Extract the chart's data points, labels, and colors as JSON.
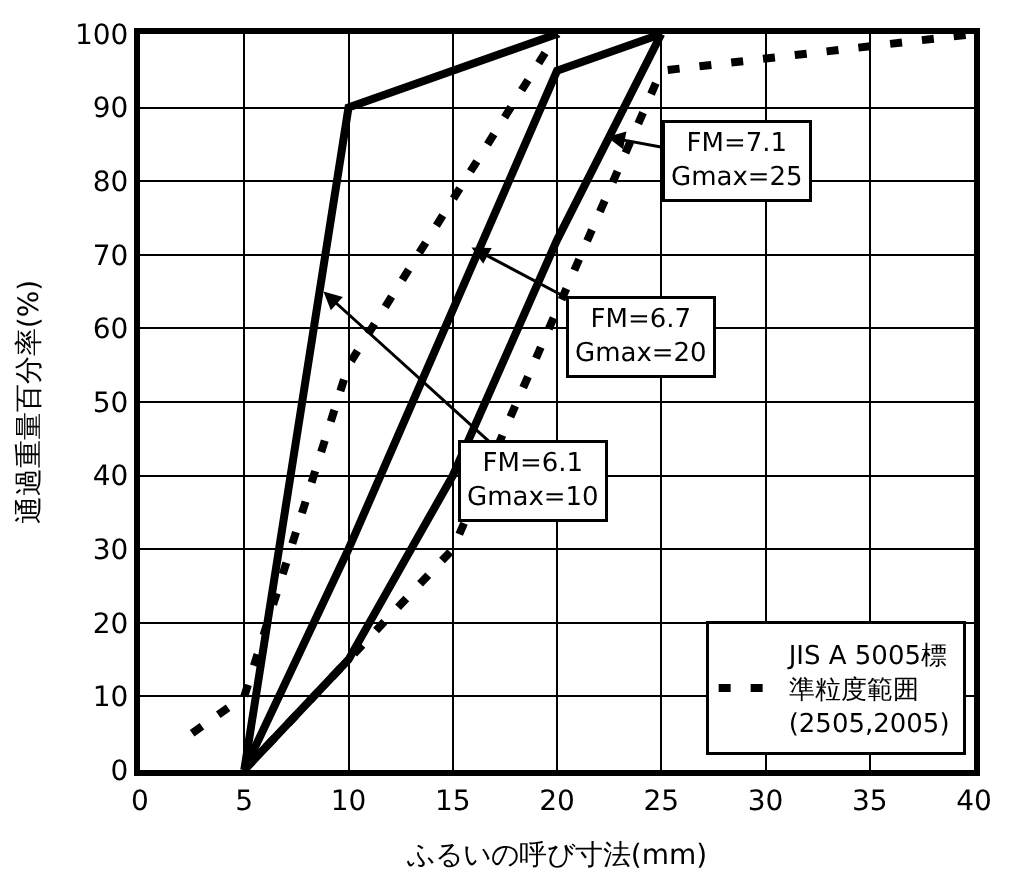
{
  "chart_data": {
    "type": "line",
    "xlabel": "ふるいの呼び寸法(mm)",
    "ylabel": "通過重量百分率(%)",
    "xlim": [
      0,
      40
    ],
    "xticks": [
      0,
      5,
      10,
      15,
      20,
      25,
      30,
      35,
      40
    ],
    "ylim": [
      0,
      100
    ],
    "yticks": [
      0,
      10,
      20,
      30,
      40,
      50,
      60,
      70,
      80,
      90,
      100
    ],
    "grid": true,
    "legend": "bottom right",
    "marker": "none",
    "series": [
      {
        "color": "#000000",
        "line_style": "solid",
        "x": [
          5,
          10,
          20
        ],
        "values": [
          0,
          90,
          100
        ]
      },
      {
        "color": "#000000",
        "line_style": "solid",
        "x": [
          5,
          10,
          20,
          25
        ],
        "values": [
          0,
          30,
          95,
          100
        ]
      },
      {
        "color": "#000000",
        "line_style": "solid",
        "x": [
          5,
          10,
          15,
          20,
          25
        ],
        "values": [
          0,
          15,
          40,
          72,
          100
        ]
      },
      {
        "name": "JIS A 5005標準粒度範囲\n(2505,2005)",
        "color": "#000000",
        "line_style": "dashed",
        "x": [
          2.5,
          5,
          10,
          20
        ],
        "values": [
          5,
          10,
          55,
          100
        ]
      },
      {
        "color": "#000000",
        "line_style": "dashed",
        "x": [
          5,
          15,
          25,
          40
        ],
        "values": [
          0,
          30,
          95,
          100
        ]
      }
    ],
    "annotations": [
      {
        "text": "FM=7.1\nGmax=25",
        "x": 22.4,
        "y": 86
      },
      {
        "text": "FM=6.7\nGmax=20",
        "x": 15.9,
        "y": 71
      },
      {
        "text": "FM=6.1\nGmax=10",
        "x": 8.8,
        "y": 65
      }
    ]
  }
}
